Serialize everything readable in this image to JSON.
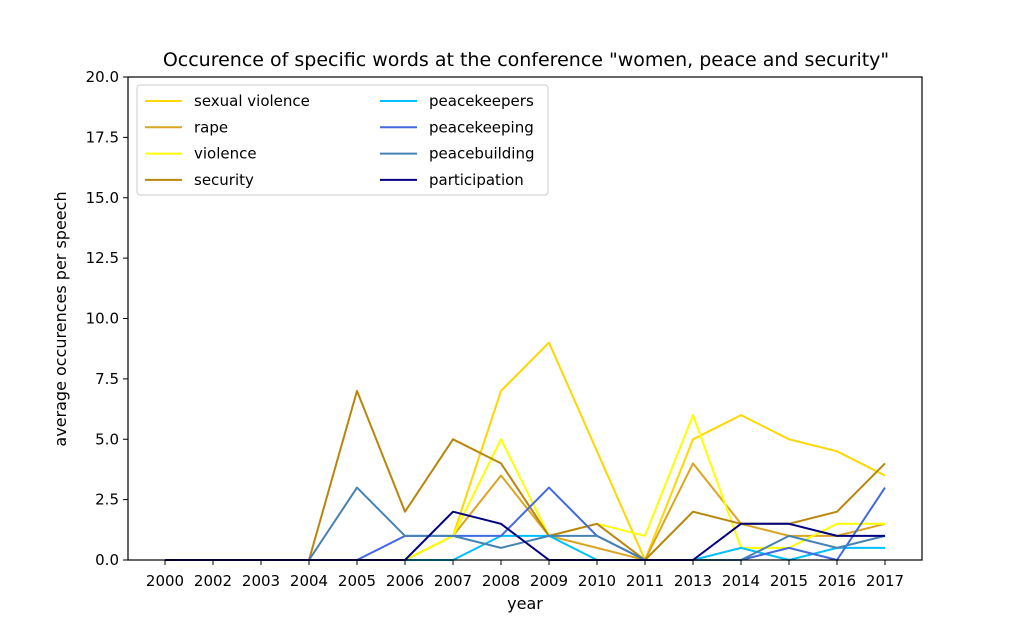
{
  "chart_data": {
    "type": "line",
    "title": "Occurence of specific words at the conference \"women, peace and security\"",
    "xlabel": "year",
    "ylabel": "average occurences per speech",
    "categories": [
      "2000",
      "2002",
      "2003",
      "2004",
      "2005",
      "2006",
      "2007",
      "2008",
      "2009",
      "2010",
      "2011",
      "2013",
      "2014",
      "2015",
      "2016",
      "2017"
    ],
    "ylim": [
      0,
      20
    ],
    "yticks": [
      "0.0",
      "2.5",
      "5.0",
      "7.5",
      "10.0",
      "12.5",
      "15.0",
      "17.5",
      "20.0"
    ],
    "legend_position": "upper-left",
    "grid": false,
    "series": [
      {
        "name": "sexual violence",
        "color": "#ffd700",
        "values": [
          0,
          0,
          0,
          0,
          0,
          0,
          1,
          7,
          9,
          4.5,
          0,
          5,
          6,
          5,
          4.5,
          3.5
        ]
      },
      {
        "name": "rape",
        "color": "#daa520",
        "values": [
          0,
          0,
          0,
          0,
          0,
          0,
          1,
          3.5,
          1,
          0.5,
          0,
          4,
          1.5,
          1,
          1,
          1.5
        ]
      },
      {
        "name": "violence",
        "color": "#ffff00",
        "values": [
          0,
          0,
          0,
          0,
          0,
          0,
          1,
          5,
          1,
          1.5,
          1,
          6,
          0.5,
          0.5,
          1.5,
          1.5
        ]
      },
      {
        "name": "security",
        "color": "#b8860b",
        "values": [
          0,
          0,
          0,
          0,
          7,
          2,
          5,
          4,
          1,
          1.5,
          0,
          2,
          1.5,
          1.5,
          2,
          4
        ]
      },
      {
        "name": "peacekeepers",
        "color": "#00bfff",
        "values": [
          0,
          0,
          0,
          0,
          0,
          0,
          0,
          1,
          1,
          0,
          0,
          0,
          0.5,
          0,
          0.5,
          0.5
        ]
      },
      {
        "name": "peacekeeping",
        "color": "#4169e1",
        "values": [
          0,
          0,
          0,
          0,
          0,
          1,
          1,
          1,
          3,
          1,
          0,
          0,
          0,
          0.5,
          0,
          3
        ]
      },
      {
        "name": "peacebuilding",
        "color": "#4682b4",
        "values": [
          0,
          0,
          0,
          0,
          3,
          1,
          1,
          0.5,
          1,
          1,
          0,
          0,
          0,
          1,
          0.5,
          1
        ]
      },
      {
        "name": "participation",
        "color": "#000080",
        "values": [
          0,
          0,
          0,
          0,
          0,
          0,
          2,
          1.5,
          0,
          0,
          0,
          0,
          1.5,
          1.5,
          1,
          1
        ]
      }
    ]
  }
}
